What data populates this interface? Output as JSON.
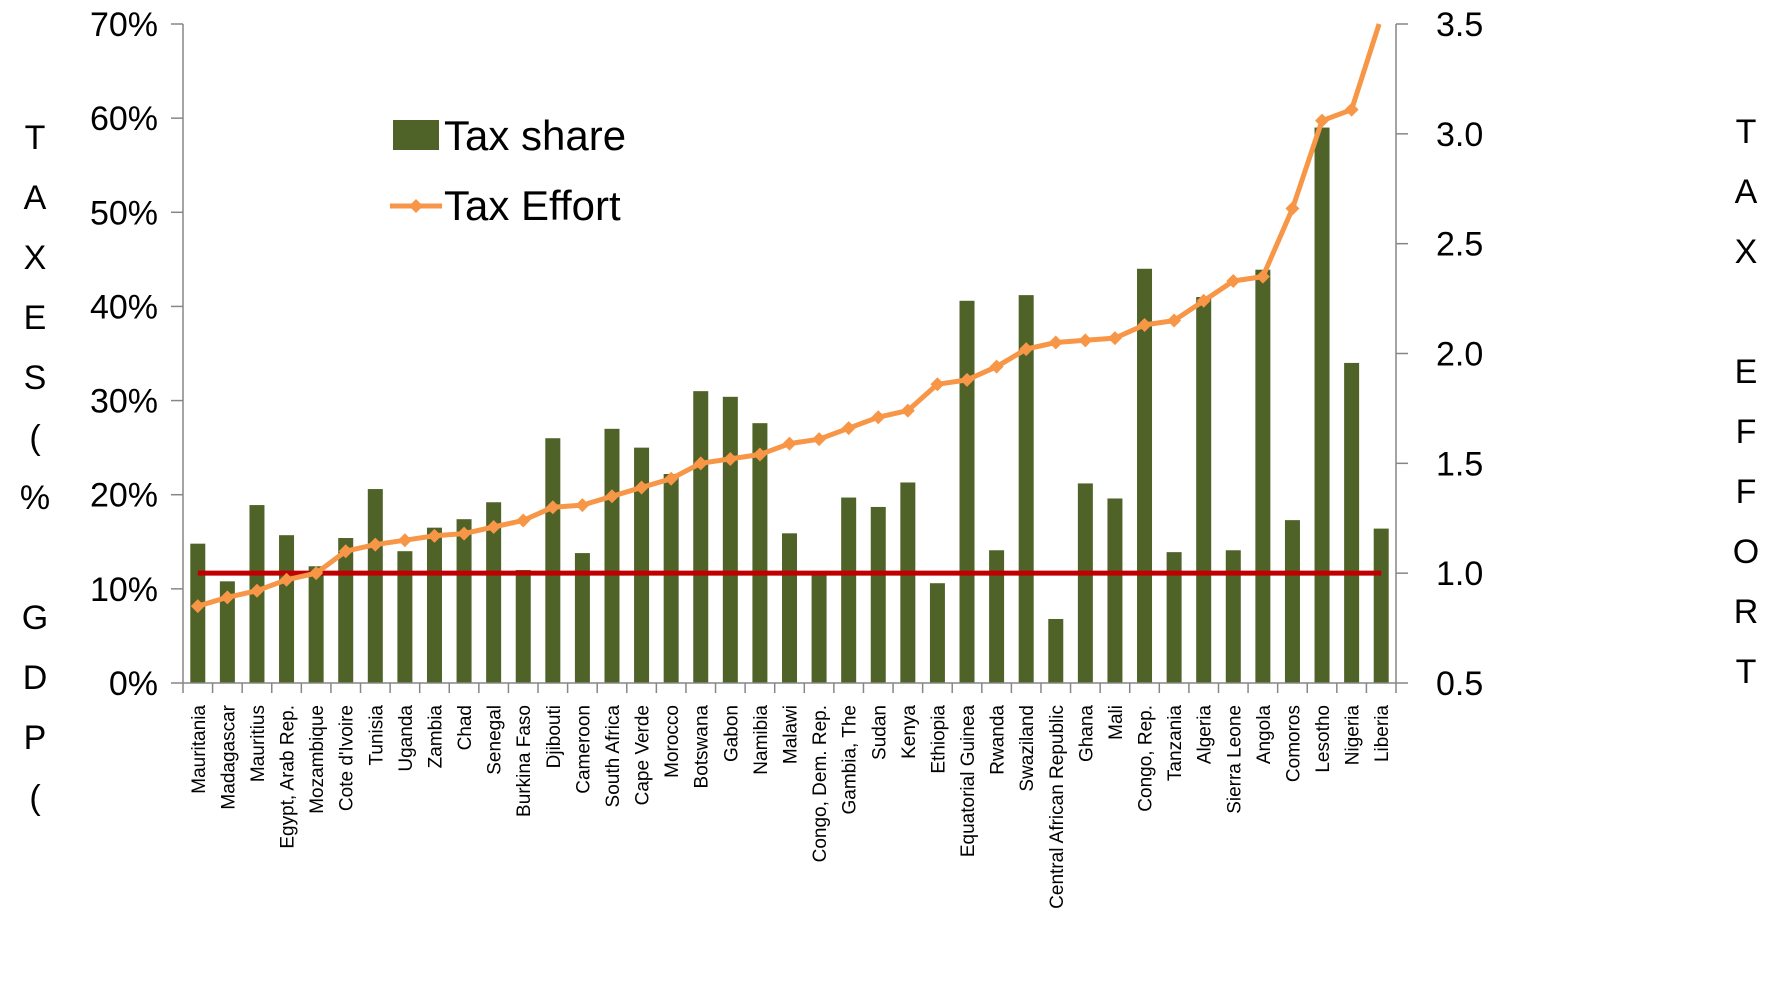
{
  "chart_data": {
    "type": "bar",
    "categories": [
      "Mauritania",
      "Madagascar",
      "Mauritius",
      "Egypt, Arab Rep.",
      "Mozambique",
      "Cote d'Ivoire",
      "Tunisia",
      "Uganda",
      "Zambia",
      "Chad",
      "Senegal",
      "Burkina Faso",
      "Djibouti",
      "Cameroon",
      "South Africa",
      "Cape Verde",
      "Morocco",
      "Botswana",
      "Gabon",
      "Namibia",
      "Malawi",
      "Congo, Dem. Rep.",
      "Gambia, The",
      "Sudan",
      "Kenya",
      "Ethiopia",
      "Equatorial Guinea",
      "Rwanda",
      "Swaziland",
      "Central African Republic",
      "Ghana",
      "Mali",
      "Congo, Rep.",
      "Tanzania",
      "Algeria",
      "Sierra Leone",
      "Angola",
      "Comoros",
      "Lesotho",
      "Nigeria",
      "Liberia"
    ],
    "series": [
      {
        "name": "Tax share",
        "type": "bar",
        "axis": "left",
        "color": "#4f6228",
        "values": [
          14.8,
          10.8,
          18.9,
          15.7,
          12.4,
          15.4,
          20.6,
          14.0,
          16.5,
          17.4,
          19.2,
          12.0,
          26.0,
          13.8,
          27.0,
          25.0,
          22.2,
          31.0,
          30.4,
          27.6,
          15.9,
          11.6,
          19.7,
          18.7,
          21.3,
          10.6,
          40.6,
          14.1,
          41.2,
          6.8,
          21.2,
          19.6,
          44.0,
          13.9,
          41.0,
          14.1,
          43.9,
          17.3,
          59.0,
          34.0,
          16.4
        ]
      },
      {
        "name": "Tax Effort",
        "type": "line",
        "axis": "right",
        "color": "#f79646",
        "values": [
          0.85,
          0.89,
          0.92,
          0.97,
          1.0,
          1.1,
          1.13,
          1.15,
          1.17,
          1.18,
          1.21,
          1.24,
          1.3,
          1.31,
          1.35,
          1.39,
          1.43,
          1.5,
          1.52,
          1.54,
          1.59,
          1.61,
          1.66,
          1.71,
          1.74,
          1.86,
          1.88,
          1.94,
          2.02,
          2.05,
          2.06,
          2.07,
          2.13,
          2.15,
          2.24,
          2.33,
          2.35,
          2.66,
          3.06,
          3.11,
          3.53
        ]
      }
    ],
    "reference_line": {
      "axis": "right",
      "value": 1.0,
      "color": "#c00000"
    },
    "y_left": {
      "ylim": [
        0,
        70
      ],
      "ticks": [
        "0%",
        "10%",
        "20%",
        "30%",
        "40%",
        "50%",
        "60%",
        "70%"
      ]
    },
    "y_right": {
      "ylim": [
        0.5,
        3.5
      ],
      "ticks": [
        "0.5",
        "1.0",
        "1.5",
        "2.0",
        "2.5",
        "3.0",
        "3.5"
      ]
    },
    "ylabel_left": [
      "T",
      "A",
      "X",
      "E",
      "S",
      "(",
      "%",
      "",
      "G",
      "D",
      "P",
      "("
    ],
    "ylabel_right": [
      "T",
      "A",
      "X",
      "",
      "E",
      "F",
      "F",
      "O",
      "R",
      "T"
    ],
    "legend": {
      "placement": "top-left"
    },
    "grid": false
  }
}
